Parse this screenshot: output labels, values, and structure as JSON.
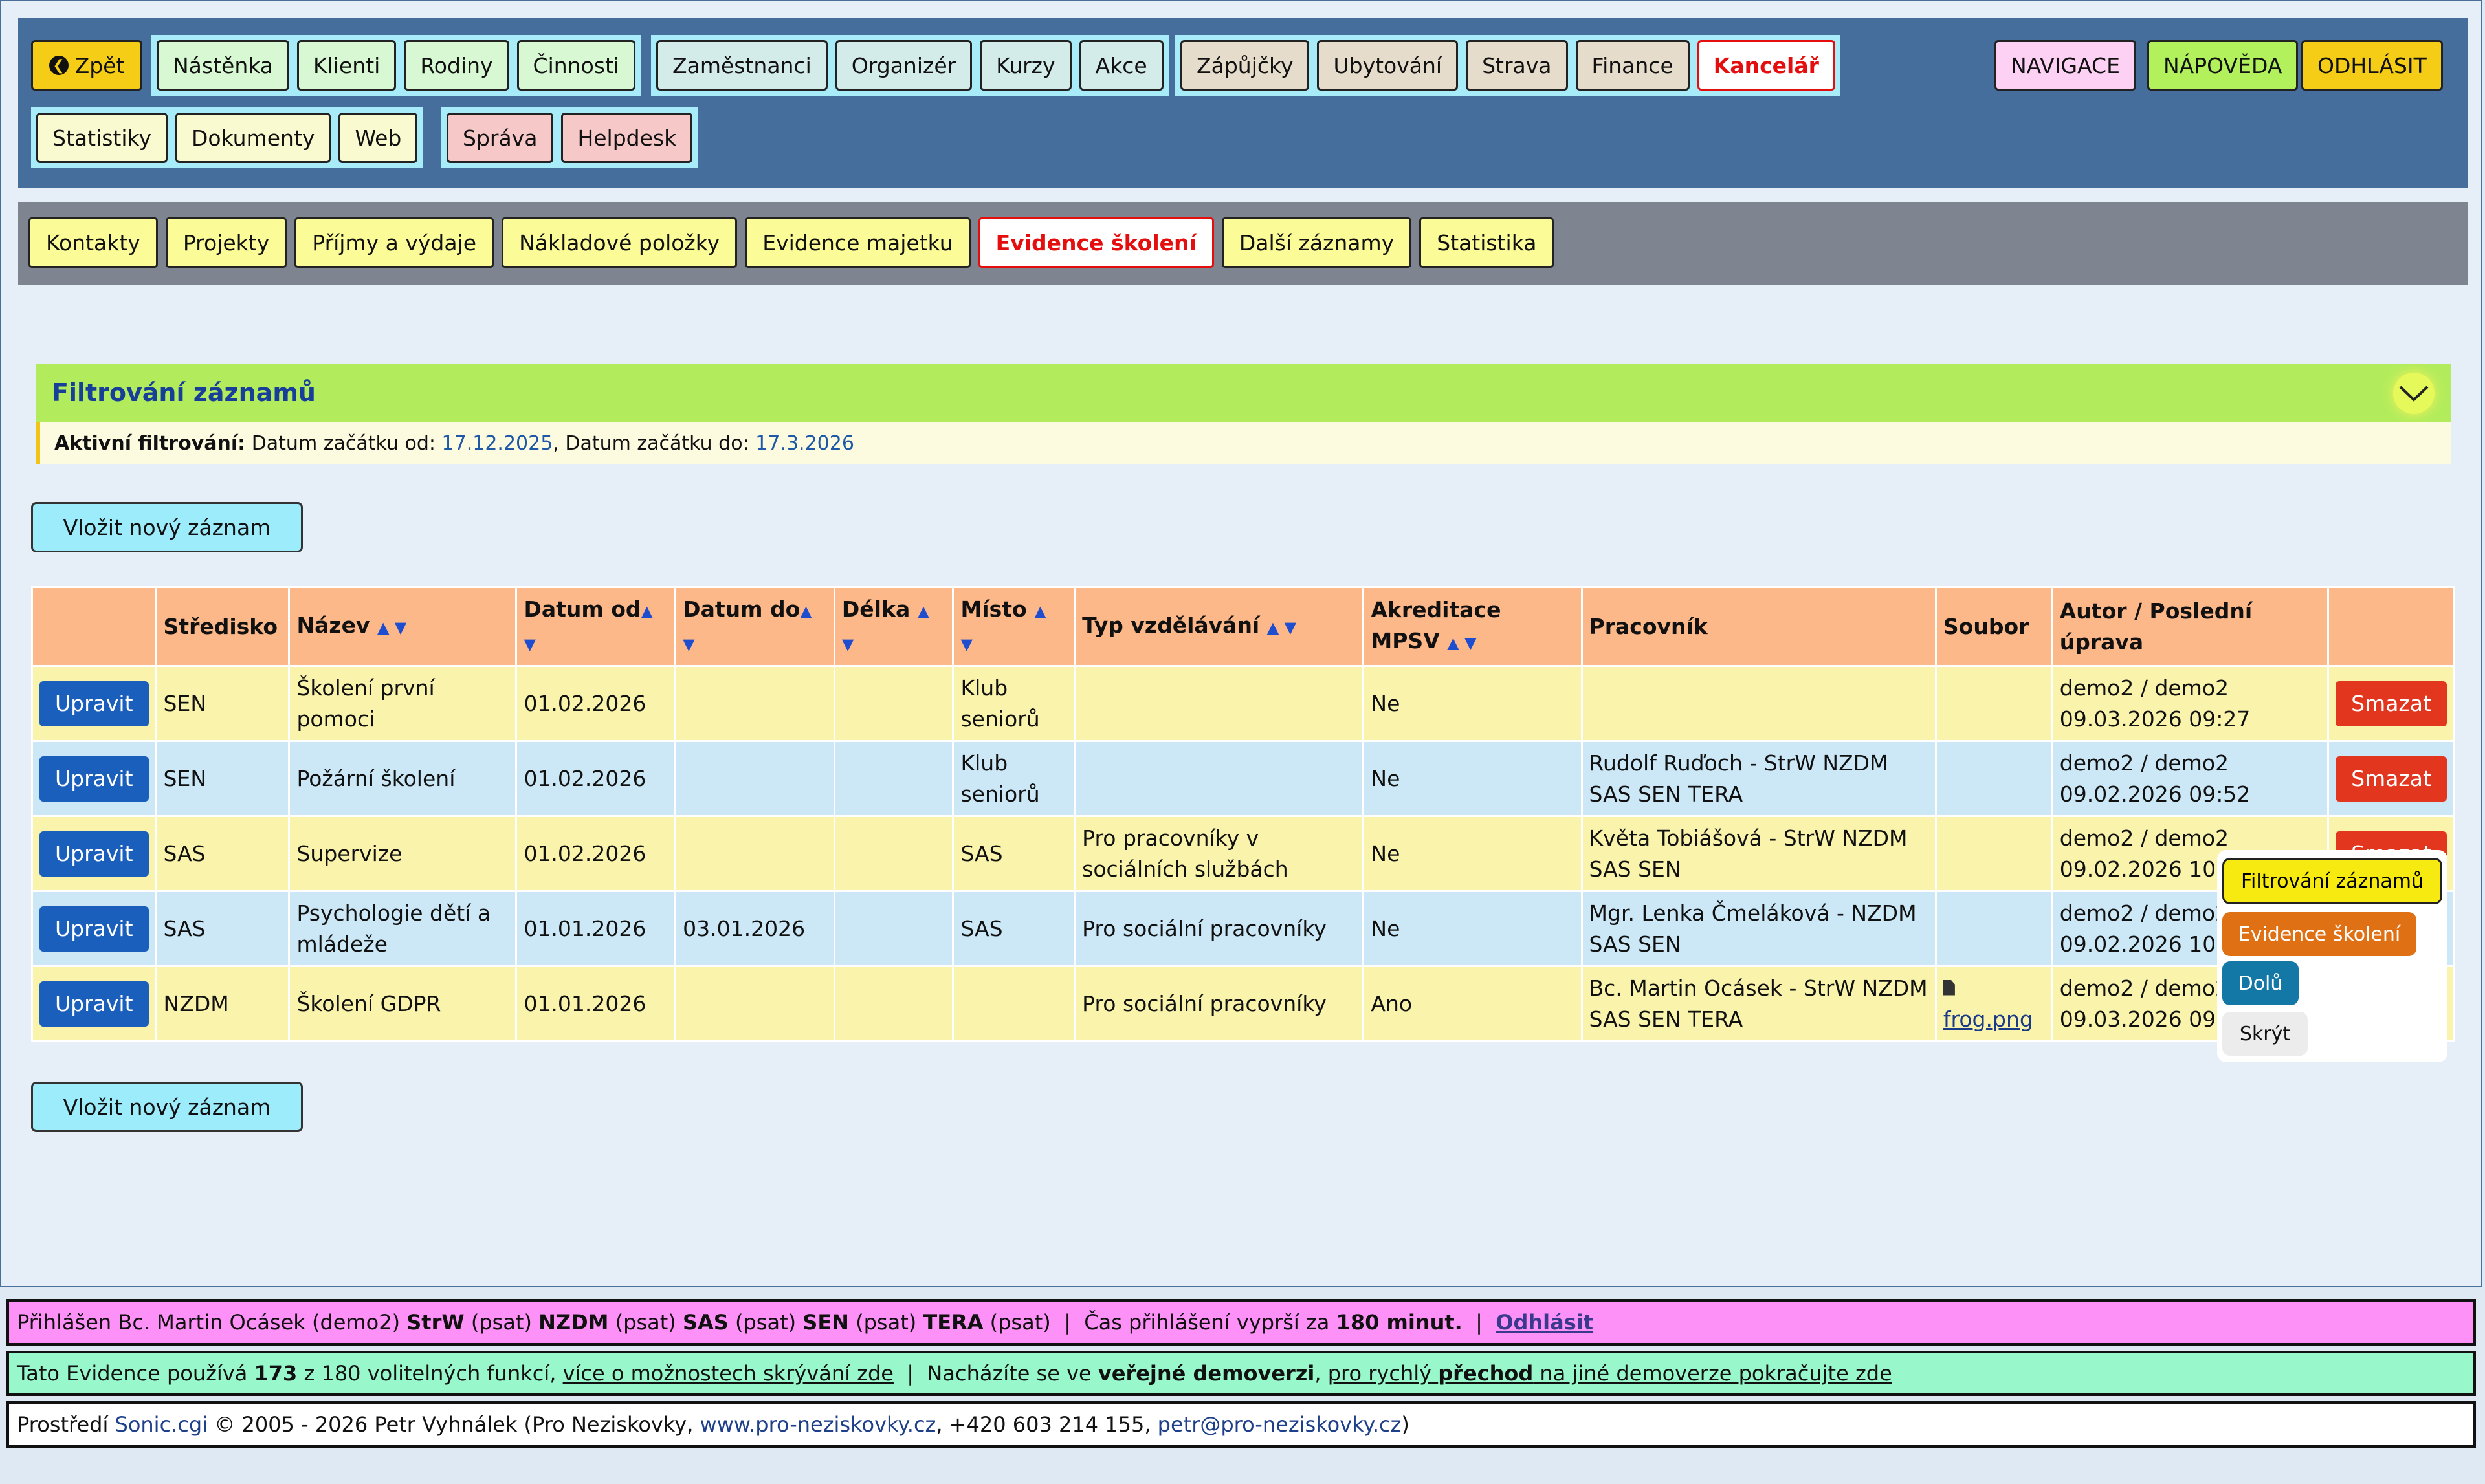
{
  "nav": {
    "back": "Zpět",
    "group1": [
      "Nástěnka",
      "Klienti",
      "Rodiny",
      "Činnosti"
    ],
    "group2": [
      "Zaměstnanci",
      "Organizér",
      "Kurzy",
      "Akce"
    ],
    "group3": [
      "Zápůjčky",
      "Ubytování",
      "Strava",
      "Finance"
    ],
    "office": "Kancelář",
    "group4": [
      "Statistiky",
      "Dokumenty",
      "Web"
    ],
    "group5": [
      "Správa",
      "Helpdesk"
    ],
    "right": [
      "NAVIGACE",
      "NÁPOVĚDA",
      "ODHLÁSIT"
    ]
  },
  "subnav": [
    "Kontakty",
    "Projekty",
    "Příjmy a výdaje",
    "Nákladové položky",
    "Evidence majetku",
    "Evidence školení",
    "Další záznamy",
    "Statistika"
  ],
  "filter": {
    "title": "Filtrování záznamů",
    "active_label": "Aktivní filtrování:",
    "from_label": "Datum začátku od:",
    "from_value": "17.12.2025",
    "to_label": "Datum začátku do:",
    "to_value": "17.3.2026"
  },
  "insert_label": "Vložit nový záznam",
  "table": {
    "headers": {
      "stredisko": "Středisko",
      "nazev": "Název",
      "datum_od": "Datum od",
      "datum_do": "Datum do",
      "delka": "Délka",
      "misto": "Místo",
      "typ": "Typ vzdělávání",
      "akreditace": "Akreditace MPSV",
      "pracovnik": "Pracovník",
      "soubor": "Soubor",
      "autor": "Autor / Poslední úprava"
    },
    "edit_label": "Upravit",
    "delete_label": "Smazat",
    "rows": [
      {
        "stredisko": "SEN",
        "nazev": "Školení první pomoci",
        "od": "01.02.2026",
        "do": "",
        "delka": "",
        "misto": "Klub seniorů",
        "typ": "",
        "akreditace": "Ne",
        "pracovnik": "",
        "soubor": "",
        "autor": "demo2 / demo2",
        "upraveno": "09.03.2026 09:27"
      },
      {
        "stredisko": "SEN",
        "nazev": "Požární školení",
        "od": "01.02.2026",
        "do": "",
        "delka": "",
        "misto": "Klub seniorů",
        "typ": "",
        "akreditace": "Ne",
        "pracovnik": "Rudolf Ruďoch - StrW NZDM SAS SEN TERA",
        "soubor": "",
        "autor": "demo2 / demo2",
        "upraveno": "09.02.2026 09:52"
      },
      {
        "stredisko": "SAS",
        "nazev": "Supervize",
        "od": "01.02.2026",
        "do": "",
        "delka": "",
        "misto": "SAS",
        "typ": "Pro pracovníky v sociálních službách",
        "akreditace": "Ne",
        "pracovnik": "Květa Tobiášová - StrW NZDM SAS SEN",
        "soubor": "",
        "autor": "demo2 / demo2",
        "upraveno": "09.02.2026 10"
      },
      {
        "stredisko": "SAS",
        "nazev": "Psychologie dětí a mládeže",
        "od": "01.01.2026",
        "do": "03.01.2026",
        "delka": "",
        "misto": "SAS",
        "typ": "Pro sociální pracovníky",
        "akreditace": "Ne",
        "pracovnik": "Mgr. Lenka Čmeláková - NZDM SAS SEN",
        "soubor": "",
        "autor": "demo2 / demo2",
        "upraveno": "09.02.2026 10"
      },
      {
        "stredisko": "NZDM",
        "nazev": "Školení GDPR",
        "od": "01.01.2026",
        "do": "",
        "delka": "",
        "misto": "",
        "typ": "Pro sociální pracovníky",
        "akreditace": "Ano",
        "pracovnik": "Bc. Martin Ocásek - StrW NZDM SAS SEN TERA",
        "soubor": "frog.png",
        "autor": "demo2 / demo2",
        "upraveno": "09.03.2026 09"
      }
    ]
  },
  "float_menu": {
    "filter": "Filtrování záznamů",
    "evidence": "Evidence školení",
    "down": "Dolů",
    "hide": "Skrýt"
  },
  "footer": {
    "login_prefix": "Přihlášen Bc. Martin Ocásek (demo2)",
    "roles": [
      {
        "name": "StrW",
        "perm": "(psat)"
      },
      {
        "name": "NZDM",
        "perm": "(psat)"
      },
      {
        "name": "SAS",
        "perm": "(psat)"
      },
      {
        "name": "SEN",
        "perm": "(psat)"
      },
      {
        "name": "TERA",
        "perm": "(psat)"
      }
    ],
    "session_text": "Čas přihlášení vyprší za",
    "session_value": "180 minut.",
    "logout": "Odhlásit",
    "features_prefix": "Tato Evidence používá",
    "features_count": "173",
    "features_suffix": "z 180 volitelných funkcí,",
    "features_link": "více o možnostech skrývání zde",
    "version_prefix": "Nacházíte se ve",
    "version_bold": "veřejné demoverzi",
    "switch_link_a": "pro rychlý",
    "switch_link_b": "přechod",
    "switch_link_c": "na jiné demoverze pokračujte zde",
    "env_prefix": "Prostředí",
    "env_name": "Sonic.cgi",
    "copyright": "© 2005 - 2026 Petr Vyhnálek (Pro Neziskovky,",
    "web": "www.pro-neziskovky.cz",
    "phone": ", +420 603 214 155,",
    "email": "petr@pro-neziskovky.cz",
    "close": ")"
  },
  "colors": {
    "nav_bg": "#456e9d",
    "accent_red": "#e40e0e",
    "edit_blue": "#1b5fbd",
    "delete_red": "#e3361f"
  }
}
